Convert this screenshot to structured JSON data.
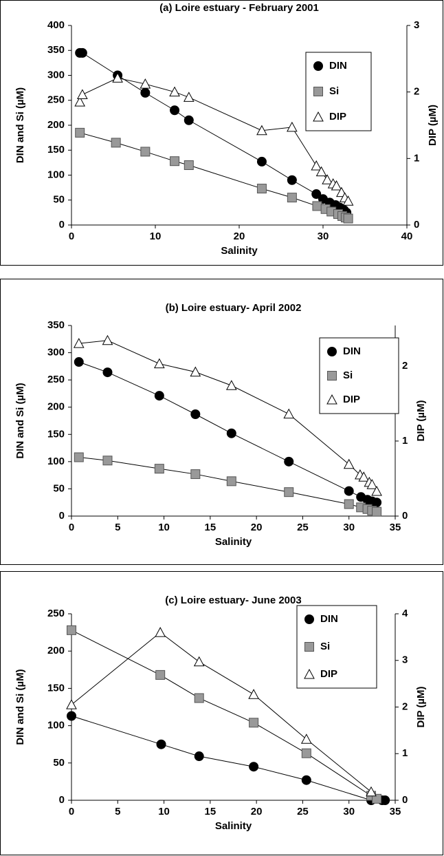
{
  "chart_data": [
    {
      "type": "scatter",
      "title": "(a)   Loire estuary  - February 2001",
      "x_label": "Salinity",
      "y_label": "DIN and  Si  (µM)",
      "y2_label": "DIP  (µM)",
      "xlim": [
        0,
        40
      ],
      "xticks": [
        0,
        10,
        20,
        30,
        40
      ],
      "ylim": [
        0,
        400
      ],
      "yticks": [
        0,
        50,
        100,
        150,
        200,
        250,
        300,
        350,
        400
      ],
      "y2lim": [
        0,
        3
      ],
      "y2ticks": [
        0,
        1,
        2,
        3
      ],
      "series": [
        {
          "name": "DIN",
          "color": "#000000",
          "marker": "circle",
          "x": [
            1,
            1.3,
            5.5,
            8.8,
            12.3,
            14,
            22.7,
            26.3,
            29.2,
            30,
            30.8,
            31.5,
            32,
            32.5,
            32.8
          ],
          "values": [
            345,
            345,
            300,
            265,
            230,
            210,
            127,
            90,
            62,
            52,
            45,
            40,
            35,
            30,
            25
          ]
        },
        {
          "name": "Si",
          "color": "#999999",
          "marker": "square",
          "x": [
            1,
            5.3,
            8.8,
            12.3,
            14,
            22.7,
            26.3,
            29.3,
            30.3,
            31,
            31.8,
            32.3,
            32.7,
            33
          ],
          "values": [
            185,
            165,
            147,
            128,
            120,
            73,
            55,
            38,
            32,
            27,
            22,
            18,
            15,
            13
          ]
        },
        {
          "name": "DIP",
          "color": "#ffffff",
          "marker": "triangle",
          "axis": "y2",
          "x": [
            1,
            1.3,
            5.5,
            8.8,
            12.3,
            14,
            22.7,
            26.3,
            29.2,
            29.8,
            30.5,
            31.2,
            31.6,
            32.2,
            32.6,
            33
          ],
          "values": [
            1.85,
            1.96,
            2.21,
            2.12,
            2.0,
            1.92,
            1.42,
            1.47,
            0.89,
            0.8,
            0.68,
            0.62,
            0.59,
            0.49,
            0.41,
            0.36
          ]
        }
      ]
    },
    {
      "type": "scatter",
      "title": "(b)    Loire estuary- April 2002",
      "x_label": "Salinity",
      "y_label": "DIN  and  Si  (µM)",
      "y2_label": "DIP  (µM)",
      "xlim": [
        0,
        35
      ],
      "xticks": [
        0,
        5,
        10,
        15,
        20,
        25,
        30,
        35
      ],
      "ylim": [
        0,
        350
      ],
      "yticks": [
        0,
        50,
        100,
        150,
        200,
        250,
        300,
        350
      ],
      "y2lim": [
        0,
        2.54
      ],
      "y2ticks": [
        0,
        1,
        2
      ],
      "series": [
        {
          "name": "DIN",
          "color": "#000000",
          "marker": "circle",
          "x": [
            0.8,
            3.9,
            9.5,
            13.4,
            17.3,
            23.5,
            30,
            31.3,
            32,
            32.5,
            33
          ],
          "values": [
            283,
            264,
            221,
            187,
            152,
            100,
            46,
            35,
            30,
            27,
            25
          ]
        },
        {
          "name": "Si",
          "color": "#999999",
          "marker": "square",
          "x": [
            0.8,
            3.9,
            9.5,
            13.4,
            17.3,
            23.5,
            30,
            31.3,
            32,
            32.5,
            33
          ],
          "values": [
            108,
            102,
            87,
            77,
            64,
            44,
            22,
            16,
            13,
            10,
            8
          ]
        },
        {
          "name": "DIP",
          "color": "#ffffff",
          "marker": "triangle",
          "axis": "y2",
          "x": [
            0.8,
            3.9,
            9.5,
            13.4,
            17.3,
            23.5,
            30,
            31.2,
            31.6,
            32.2,
            32.5,
            33
          ],
          "values": [
            2.3,
            2.34,
            2.03,
            1.92,
            1.74,
            1.36,
            0.69,
            0.55,
            0.52,
            0.45,
            0.42,
            0.33
          ]
        }
      ]
    },
    {
      "type": "scatter",
      "title": "(c)   Loire estuary- June 2003",
      "x_label": "Salinity",
      "y_label": "DIN and Si (µM)",
      "y2_label": "DIP (µM)",
      "xlim": [
        0,
        35
      ],
      "xticks": [
        0,
        5,
        10,
        15,
        20,
        25,
        30,
        35
      ],
      "ylim": [
        0,
        250
      ],
      "yticks": [
        0,
        50,
        100,
        150,
        200,
        250
      ],
      "y2lim": [
        0,
        4
      ],
      "y2ticks": [
        0,
        1,
        2,
        3,
        4
      ],
      "series": [
        {
          "name": "DIN",
          "color": "#000000",
          "marker": "circle",
          "x": [
            0,
            9.7,
            13.8,
            19.7,
            25.4,
            32.4,
            33.6,
            33.9
          ],
          "values": [
            113,
            75,
            59,
            45,
            27,
            0,
            0,
            0
          ]
        },
        {
          "name": "Si",
          "color": "#999999",
          "marker": "square",
          "x": [
            0,
            9.6,
            13.8,
            19.7,
            25.4,
            32.4,
            33
          ],
          "values": [
            228,
            168,
            137,
            104,
            63,
            6,
            2
          ]
        },
        {
          "name": "DIP",
          "color": "#ffffff",
          "marker": "triangle",
          "axis": "y2",
          "x": [
            0,
            9.6,
            13.8,
            19.7,
            25.4,
            32.4
          ],
          "values": [
            2.05,
            3.6,
            2.97,
            2.27,
            1.31,
            0.18
          ]
        }
      ]
    }
  ]
}
